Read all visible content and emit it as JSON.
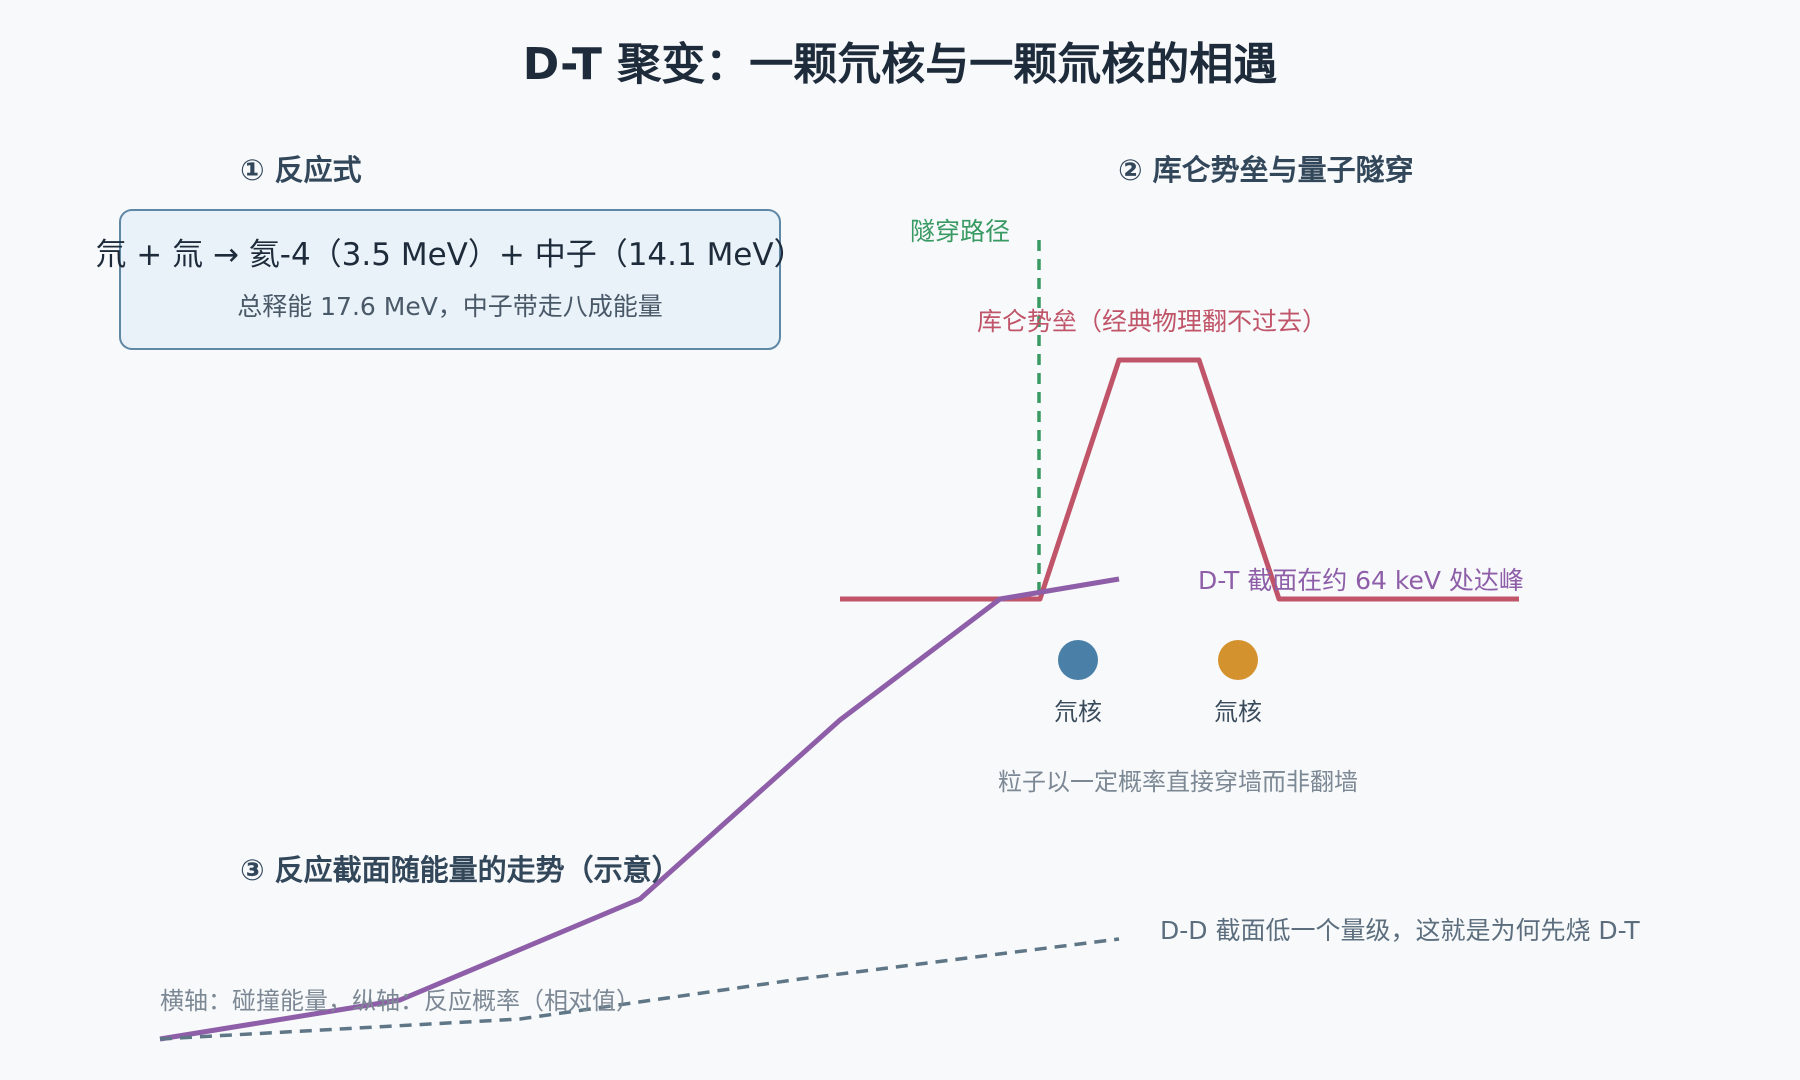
{
  "title": "D-T 聚变：一颗氘核与一颗氚核的相遇",
  "reaction": {
    "heading": "① 反应式",
    "equation": "氘 + 氚 → 氦-4（3.5 MeV）+ 中子（14.1 MeV）",
    "summary": "总释能 17.6 MeV，中子带走八成能量"
  },
  "barrier": {
    "heading": "② 库仑势垒与量子隧穿",
    "tunnel_label": "隧穿路径",
    "barrier_label": "库仑势垒（经典物理翻不过去）",
    "nucleus_left": "氘核",
    "nucleus_right": "氚核",
    "note": "粒子以一定概率直接穿墙而非翻墙"
  },
  "cross_section": {
    "heading": "③ 反应截面随能量的走势（示意）",
    "dt_label": "D-T 截面在约 64 keV 处达峰",
    "dd_label": "D-D 截面低一个量级，这就是为何先烧 D-T",
    "axis_note": "横轴：碰撞能量，纵轴：反应概率（相对值）"
  },
  "colors": {
    "deuteron": "#4a7fa8",
    "triton": "#d4922e",
    "barrier": "#c05468",
    "tunnel": "#3a9a63",
    "dt_curve": "#8e5ea8",
    "dd_curve": "#5f7686",
    "box_fill": "#eaf2f9",
    "box_stroke": "#5f88a6"
  }
}
